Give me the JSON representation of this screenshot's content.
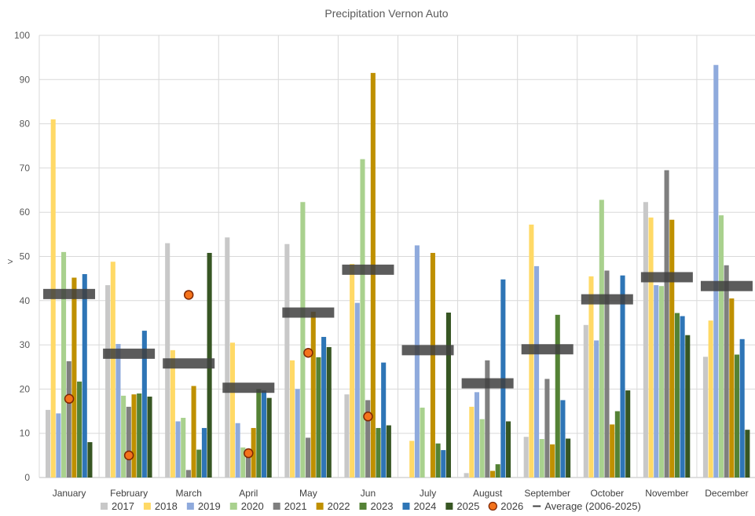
{
  "chart_data": {
    "type": "bar",
    "title": "Precipitation Vernon Auto",
    "xlabel": "",
    "ylabel": "",
    "ylim": [
      0,
      100
    ],
    "yticks": [
      0,
      10,
      20,
      30,
      40,
      50,
      60,
      70,
      80,
      90,
      100
    ],
    "grid": true,
    "legend_position": "bottom",
    "categories": [
      "January",
      "February",
      "March",
      "April",
      "May",
      "Jun",
      "July",
      "August",
      "September",
      "October",
      "November",
      "December"
    ],
    "series": [
      {
        "name": "2017",
        "kind": "bar",
        "color": "#c8c8c8",
        "values": [
          15.3,
          43.5,
          53.0,
          54.3,
          52.8,
          18.8,
          0,
          1.0,
          9.2,
          34.5,
          62.3,
          27.3
        ]
      },
      {
        "name": "2018",
        "kind": "bar",
        "color": "#ffd966",
        "values": [
          81.0,
          48.8,
          28.8,
          30.5,
          26.5,
          48.3,
          8.3,
          16.0,
          57.2,
          45.5,
          58.8,
          35.5
        ]
      },
      {
        "name": "2019",
        "kind": "bar",
        "color": "#8faadc",
        "values": [
          14.5,
          30.2,
          12.7,
          12.3,
          20.0,
          39.5,
          52.5,
          19.3,
          47.8,
          31.0,
          43.5,
          93.3
        ]
      },
      {
        "name": "2020",
        "kind": "bar",
        "color": "#a9d18e",
        "values": [
          51.0,
          18.5,
          13.5,
          6.8,
          62.3,
          72.0,
          15.8,
          13.2,
          8.7,
          62.8,
          43.3,
          59.3
        ]
      },
      {
        "name": "2021",
        "kind": "bar",
        "color": "#7f7f7f",
        "values": [
          26.3,
          16.0,
          1.7,
          6.5,
          9.0,
          17.5,
          0,
          26.5,
          22.3,
          46.8,
          69.5,
          48.0
        ]
      },
      {
        "name": "2022",
        "kind": "bar",
        "color": "#bf9000",
        "values": [
          45.2,
          18.8,
          20.7,
          11.2,
          37.5,
          91.5,
          50.8,
          1.5,
          7.5,
          12.0,
          58.3,
          40.5
        ]
      },
      {
        "name": "2023",
        "kind": "bar",
        "color": "#548235",
        "values": [
          21.7,
          19.0,
          6.3,
          20.0,
          27.2,
          11.2,
          7.7,
          3.0,
          36.8,
          15.0,
          37.2,
          27.8
        ]
      },
      {
        "name": "2024",
        "kind": "bar",
        "color": "#2e75b6",
        "values": [
          46.0,
          33.2,
          11.2,
          19.7,
          31.8,
          26.0,
          6.2,
          44.8,
          17.5,
          45.7,
          36.5,
          31.3
        ]
      },
      {
        "name": "2025",
        "kind": "bar",
        "color": "#375623",
        "values": [
          8.0,
          18.3,
          50.8,
          18.0,
          29.5,
          11.8,
          37.3,
          12.7,
          8.8,
          19.7,
          32.2,
          10.8
        ]
      },
      {
        "name": "2026",
        "kind": "point",
        "color": "#f4731c",
        "values": [
          17.8,
          5.0,
          41.3,
          5.5,
          28.2,
          13.8,
          null,
          null,
          null,
          null,
          null,
          null
        ]
      },
      {
        "name": "Average (2006-2025)",
        "kind": "average",
        "color": "#404040",
        "values": [
          41.5,
          28.0,
          25.8,
          20.3,
          37.3,
          47.0,
          28.8,
          21.3,
          29.0,
          40.3,
          45.3,
          43.3
        ]
      }
    ]
  }
}
